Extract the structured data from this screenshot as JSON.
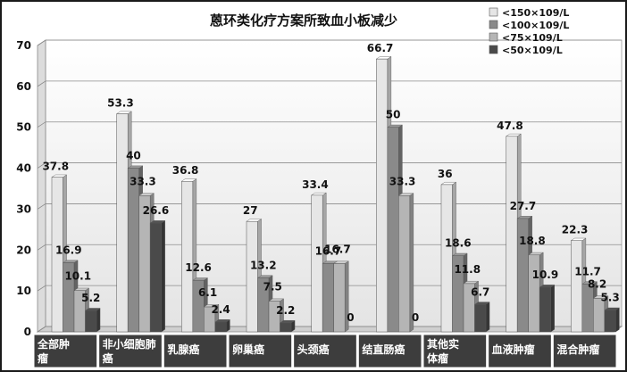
{
  "chart_data": {
    "type": "bar",
    "title": "蒽环类化疗方案所致血小板减少",
    "categories": [
      [
        "全部肿",
        "瘤"
      ],
      [
        "非小细胞肺",
        "癌"
      ],
      [
        "乳腺癌"
      ],
      [
        "卵巢癌"
      ],
      [
        "头颈癌"
      ],
      [
        "结直肠癌"
      ],
      [
        "其他实",
        "体瘤"
      ],
      [
        "血液肿瘤"
      ],
      [
        "混合肿瘤"
      ]
    ],
    "series": [
      {
        "name": "<150×109/L",
        "color": "#e6e6e6",
        "values": [
          37.8,
          53.3,
          36.8,
          27,
          33.4,
          66.7,
          36,
          47.8,
          22.3
        ],
        "labels": [
          "37.8",
          "53.3",
          "36.8",
          "27",
          "33.4",
          "66.7",
          "36",
          "47.8",
          "22.3"
        ]
      },
      {
        "name": "<100×109/L",
        "color": "#8a8a8a",
        "values": [
          16.9,
          40,
          12.6,
          13.2,
          16.7,
          50,
          18.6,
          27.7,
          11.7
        ],
        "labels": [
          "16.9",
          "40",
          "12.6",
          "13.2",
          "16.7",
          "50",
          "18.6",
          "27.7",
          "11.7"
        ]
      },
      {
        "name": "<75×109/L",
        "color": "#b5b5b5",
        "values": [
          10.1,
          33.3,
          6.1,
          7.5,
          16.7,
          33.3,
          11.8,
          18.8,
          8.2
        ],
        "labels": [
          "10.1",
          "33.3",
          "6.1",
          "7.5",
          "16.7",
          "33.3",
          "11.8",
          "18.8",
          "8.2"
        ]
      },
      {
        "name": "<50×109/L",
        "color": "#4a4a4a",
        "values": [
          5.2,
          26.6,
          2.4,
          2.2,
          0,
          0,
          6.7,
          10.9,
          5.3
        ],
        "labels": [
          "5.2",
          "26.6",
          "2.4",
          "2.2",
          "0",
          "0",
          "6.7",
          "10.9",
          "5.3"
        ]
      }
    ],
    "ylim": [
      0,
      70
    ],
    "yticks": [
      0,
      10,
      20,
      30,
      40,
      50,
      60,
      70
    ],
    "grid": true,
    "legend_position": "top-right",
    "category_label_background": "#3d3d3d"
  }
}
